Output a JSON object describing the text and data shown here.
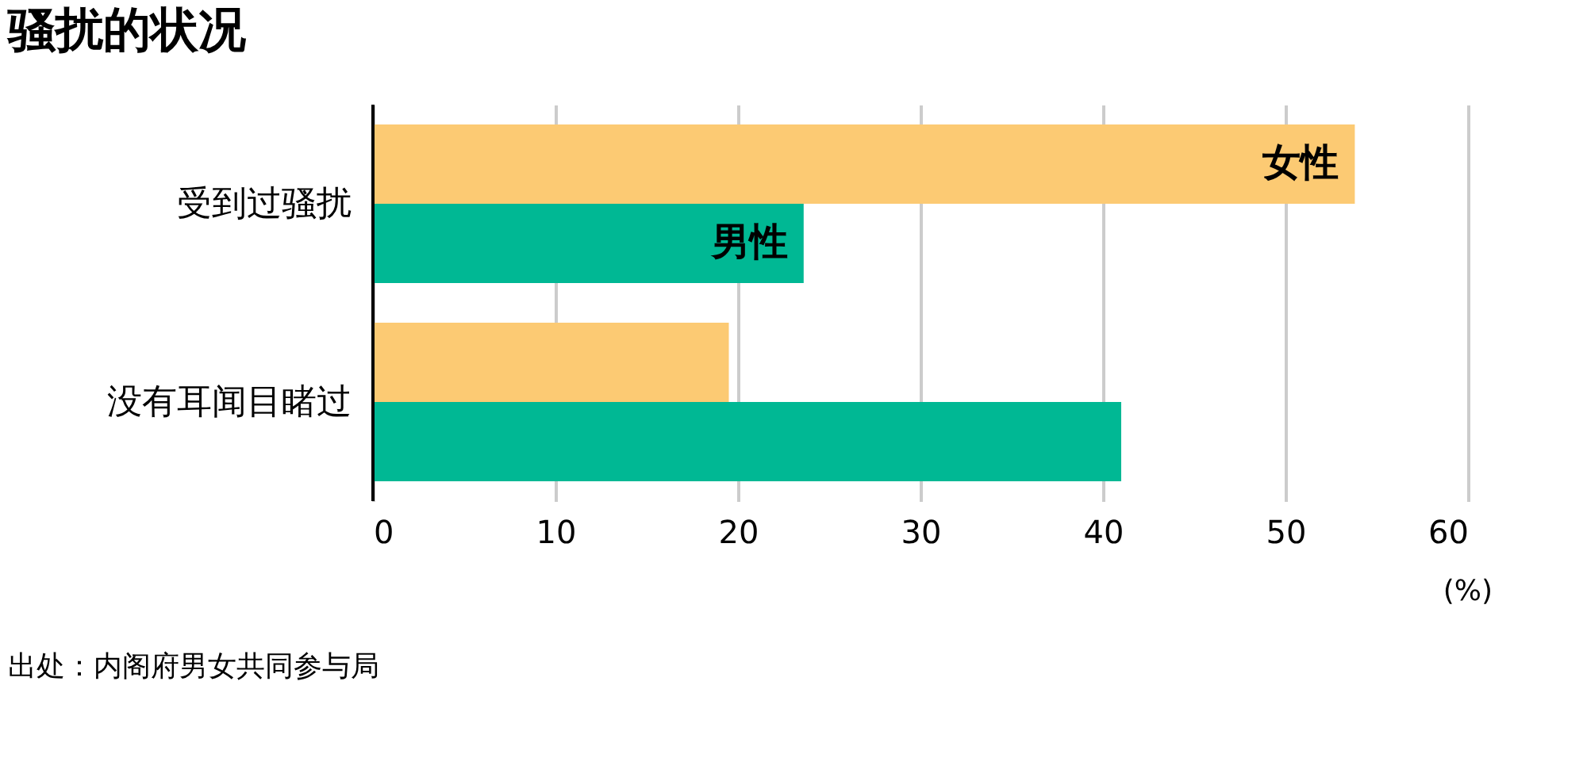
{
  "chart_data": {
    "type": "bar",
    "orientation": "horizontal",
    "title": "骚扰的状况",
    "categories": [
      "受到过骚扰",
      "没有耳闻目睹过"
    ],
    "series": [
      {
        "name": "女性",
        "color": "#fcca73",
        "values": [
          53.8,
          19.5
        ]
      },
      {
        "name": "男性",
        "color": "#00b894",
        "values": [
          23.6,
          41.0
        ]
      }
    ],
    "xlim": [
      0,
      60
    ],
    "xticks": [
      0,
      10,
      20,
      30,
      40,
      50,
      60
    ],
    "xlabel": "(%)",
    "grid": "x",
    "legend": false,
    "annotations": [
      "出处：内阁府男女共同参与局"
    ]
  }
}
